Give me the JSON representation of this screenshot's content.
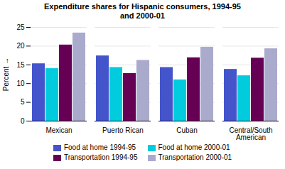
{
  "chart_data": {
    "type": "bar",
    "title": "Expenditure shares for Hispanic consumers, 1994-95\nand 2000-01",
    "ylabel": "Percent",
    "categories": [
      "Mexican",
      "Puerto Rican",
      "Cuban",
      "Central/South\nAmerican"
    ],
    "series": [
      {
        "name": "Food at home 1994-95",
        "color": "#4455cc",
        "values": [
          15.3,
          17.4,
          14.3,
          13.8
        ]
      },
      {
        "name": "Food at home 2000-01",
        "color": "#00ccdd",
        "values": [
          14.0,
          14.3,
          11.0,
          12.1
        ]
      },
      {
        "name": "Transportation 1994-95",
        "color": "#660055",
        "values": [
          20.3,
          12.7,
          16.9,
          16.8
        ]
      },
      {
        "name": "Transportation 2000-01",
        "color": "#aaaacc",
        "values": [
          23.5,
          16.2,
          19.7,
          19.3
        ]
      }
    ],
    "ylim": [
      0,
      25
    ],
    "yticks": [
      0,
      5,
      10,
      15,
      20,
      25
    ],
    "grid": true,
    "legend": "bottom"
  }
}
